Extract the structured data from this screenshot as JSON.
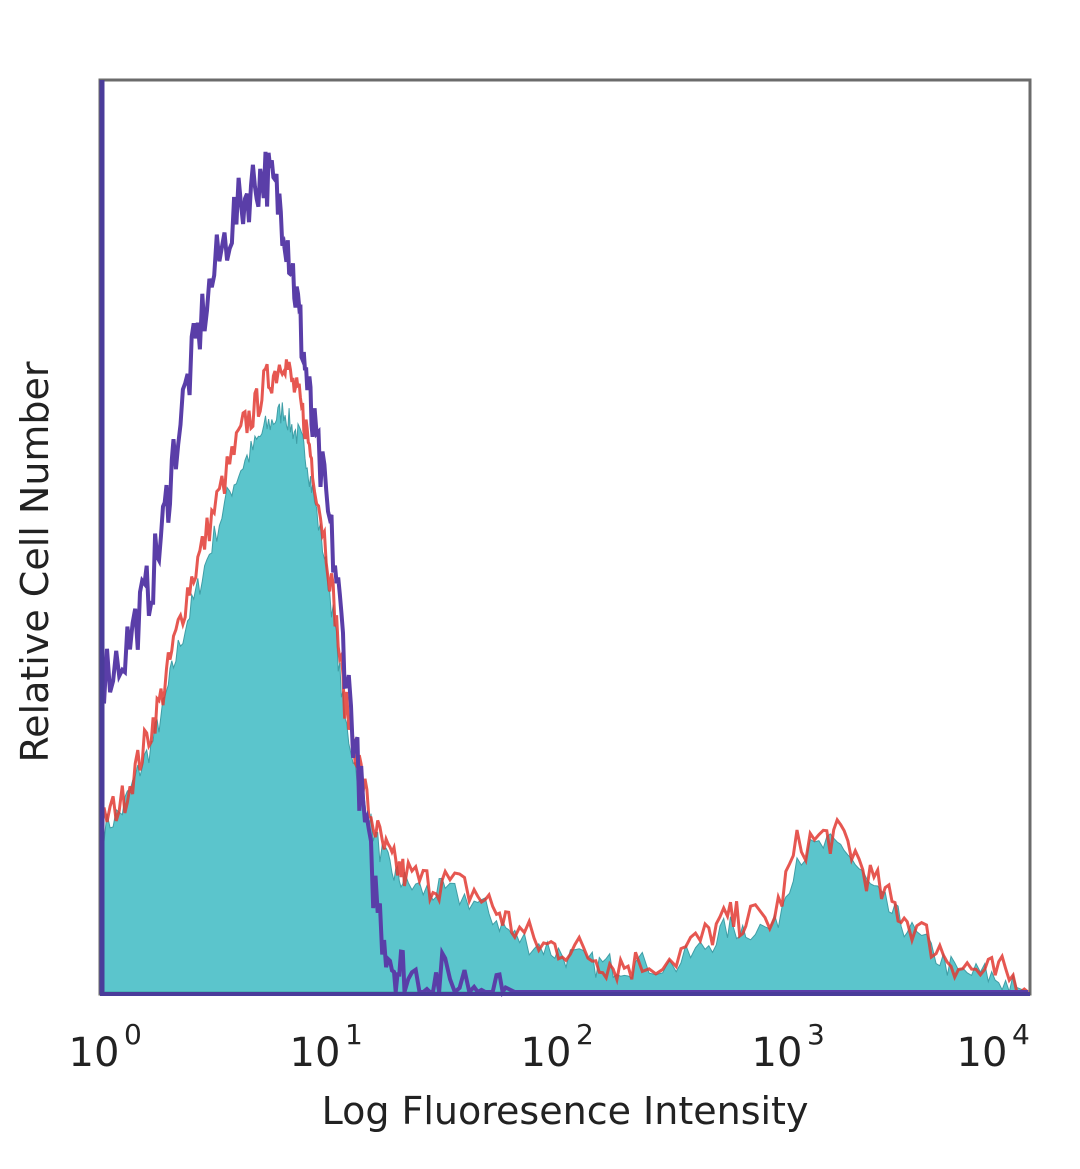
{
  "chart_data": {
    "type": "area",
    "title": "",
    "xlabel": "Log Fluoresence Intensity",
    "ylabel": "Relative Cell Number",
    "xscale": "log",
    "xlim": [
      1,
      10000
    ],
    "ylim": [
      0,
      100
    ],
    "grid": false,
    "legend": "none",
    "x_ticks": [
      {
        "base": "10",
        "exp": "0",
        "value": 1
      },
      {
        "base": "10",
        "exp": "1",
        "value": 10
      },
      {
        "base": "10",
        "exp": "2",
        "value": 100
      },
      {
        "base": "10",
        "exp": "3",
        "value": 1000
      },
      {
        "base": "10",
        "exp": "4",
        "value": 10000
      }
    ],
    "x": [
      1.0,
      1.2,
      1.4,
      1.6,
      1.8,
      2.0,
      2.3,
      2.6,
      3.0,
      3.5,
      4.0,
      4.5,
      5.0,
      5.5,
      6.0,
      6.5,
      7.0,
      7.5,
      8.0,
      9.0,
      10.0,
      11.0,
      12.5,
      14.0,
      16.0,
      18.0,
      20.0,
      25.0,
      30.0,
      40.0,
      50.0,
      60.0,
      80.0,
      100.0,
      130.0,
      160.0,
      200.0,
      300.0,
      400.0,
      500.0,
      600.0,
      800.0,
      1000.0,
      1300.0,
      1600.0,
      2000.0,
      2500.0,
      3000.0,
      4000.0,
      5000.0,
      6500.0,
      8000.0,
      10000.0
    ],
    "series": [
      {
        "values": [
          18,
          20,
          24,
          27,
          31,
          36,
          41,
          45,
          50,
          55,
          58,
          60,
          62,
          63,
          64,
          62,
          61,
          59,
          55,
          48,
          40,
          30,
          24,
          19,
          15,
          13,
          12,
          11,
          11,
          10,
          8,
          6,
          5,
          4,
          3,
          3,
          3,
          3,
          5,
          7,
          7,
          7,
          15,
          16,
          16,
          12,
          9,
          7,
          4,
          2,
          2,
          1,
          0
        ],
        "color": "#5bc5cc"
      },
      {
        "values": [
          19,
          21,
          25,
          29,
          33,
          38,
          44,
          48,
          53,
          58,
          62,
          64,
          67,
          68,
          70,
          67,
          65,
          62,
          58,
          50,
          42,
          32,
          26,
          20,
          16,
          14,
          13,
          12,
          12,
          11,
          9,
          7,
          5,
          5,
          4,
          3,
          3,
          4,
          6,
          8,
          8,
          8,
          16,
          17,
          17,
          13,
          10,
          8,
          5,
          3,
          2,
          2,
          0
        ],
        "color": "#e23a33"
      },
      {
        "values": [
          35,
          37,
          41,
          45,
          51,
          59,
          67,
          73,
          79,
          84,
          87,
          89,
          90,
          88,
          85,
          80,
          74,
          68,
          62,
          55,
          47,
          37,
          25,
          15,
          7,
          3,
          2,
          1,
          1,
          1,
          1,
          0,
          0,
          0,
          0,
          0,
          0,
          0,
          0,
          0,
          0,
          0,
          0,
          0,
          0,
          0,
          0,
          0,
          0,
          0,
          0,
          0,
          0
        ],
        "color": "#5a3ea8"
      }
    ]
  }
}
